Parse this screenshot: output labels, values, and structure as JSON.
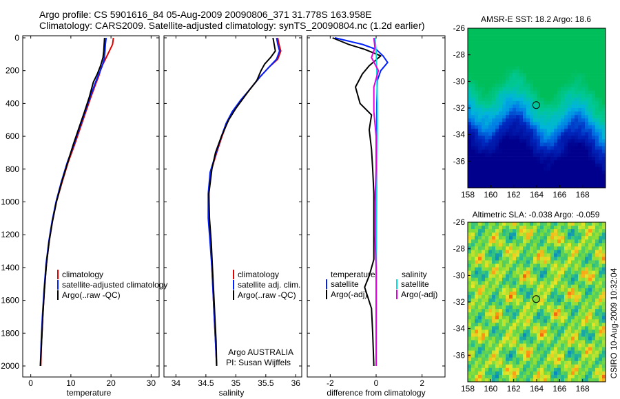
{
  "header": {
    "line1": "Argo profile: CS 5901616_84 05-Aug-2009 20090806_371 31.778S 163.958E",
    "line2": "Climatology: CARS2009. Satellite-adjusted climatology: synTS_20090804.nc (1.2d earlier)"
  },
  "colors": {
    "climatology": "#e00000",
    "satellite": "#0020ff",
    "argo": "#000000",
    "satellite_salinity": "#00e0e0",
    "argo_salinity": "#e000e0"
  },
  "depth_ticks": [
    "0",
    "200",
    "400",
    "600",
    "800",
    "1000",
    "1200",
    "1400",
    "1600",
    "1800",
    "2000"
  ],
  "chart_data": [
    {
      "type": "line",
      "id": "temperature",
      "xlabel": "temperature",
      "ylabel": "",
      "xlim": [
        -2,
        32
      ],
      "ylim": [
        2050,
        0
      ],
      "xticks": [
        "0",
        "10",
        "20",
        "30"
      ],
      "legend": [
        "climatology",
        "satellite-adjusted climatology",
        "Argo(..raw -QC)"
      ],
      "series": [
        {
          "name": "climatology",
          "color": "#e00000",
          "points": [
            [
              20.6,
              0
            ],
            [
              20.4,
              40
            ],
            [
              19.6,
              80
            ],
            [
              18.6,
              130
            ],
            [
              17.6,
              180
            ],
            [
              17.0,
              230
            ],
            [
              16.2,
              280
            ],
            [
              15.0,
              360
            ],
            [
              13.6,
              460
            ],
            [
              12.2,
              560
            ],
            [
              10.8,
              660
            ],
            [
              9.3,
              760
            ],
            [
              7.8,
              880
            ],
            [
              6.4,
              1000
            ],
            [
              5.4,
              1120
            ],
            [
              4.6,
              1240
            ],
            [
              3.9,
              1380
            ],
            [
              3.4,
              1540
            ],
            [
              3.0,
              1700
            ],
            [
              2.7,
              1850
            ],
            [
              2.5,
              2000
            ]
          ]
        },
        {
          "name": "satellite-adjusted climatology",
          "color": "#0020ff",
          "points": [
            [
              18.8,
              0
            ],
            [
              18.6,
              40
            ],
            [
              18.5,
              80
            ],
            [
              18.3,
              130
            ],
            [
              17.7,
              180
            ],
            [
              16.8,
              230
            ],
            [
              16.0,
              280
            ],
            [
              14.8,
              360
            ],
            [
              13.4,
              460
            ],
            [
              12.0,
              560
            ],
            [
              10.6,
              660
            ],
            [
              9.1,
              760
            ],
            [
              7.6,
              880
            ],
            [
              6.3,
              1000
            ],
            [
              5.3,
              1120
            ],
            [
              4.5,
              1240
            ],
            [
              3.8,
              1380
            ],
            [
              3.3,
              1540
            ],
            [
              2.9,
              1700
            ],
            [
              2.6,
              1850
            ],
            [
              2.4,
              2000
            ]
          ]
        },
        {
          "name": "Argo(..raw -QC)",
          "color": "#000000",
          "points": [
            [
              18.4,
              0
            ],
            [
              18.3,
              40
            ],
            [
              18.2,
              80
            ],
            [
              18.0,
              120
            ],
            [
              17.4,
              170
            ],
            [
              16.6,
              220
            ],
            [
              15.6,
              270
            ],
            [
              14.6,
              360
            ],
            [
              13.4,
              450
            ],
            [
              12.0,
              550
            ],
            [
              10.6,
              650
            ],
            [
              9.2,
              760
            ],
            [
              7.7,
              880
            ],
            [
              6.4,
              1000
            ],
            [
              5.4,
              1120
            ],
            [
              4.6,
              1240
            ],
            [
              3.9,
              1380
            ],
            [
              3.4,
              1540
            ],
            [
              3.0,
              1700
            ],
            [
              2.7,
              1850
            ],
            [
              2.4,
              2000
            ]
          ]
        }
      ]
    },
    {
      "type": "line",
      "id": "salinity",
      "xlabel": "salinity",
      "ylabel": "",
      "xlim": [
        33.8,
        36.1
      ],
      "ylim": [
        2050,
        0
      ],
      "xticks": [
        "34",
        "34.5",
        "35",
        "35.5",
        "36"
      ],
      "legend": [
        "climatology",
        "satellite adj. clim.",
        "Argo(..raw -QC)"
      ],
      "annotation": [
        "Argo AUSTRALIA",
        "PI: Susan Wijffels"
      ],
      "series": [
        {
          "name": "climatology",
          "color": "#e00000",
          "points": [
            [
              35.7,
              0
            ],
            [
              35.72,
              40
            ],
            [
              35.75,
              80
            ],
            [
              35.7,
              130
            ],
            [
              35.55,
              180
            ],
            [
              35.4,
              240
            ],
            [
              35.22,
              320
            ],
            [
              35.1,
              380
            ],
            [
              34.95,
              450
            ],
            [
              34.85,
              520
            ],
            [
              34.77,
              600
            ],
            [
              34.68,
              700
            ],
            [
              34.58,
              820
            ],
            [
              34.55,
              950
            ],
            [
              34.55,
              1100
            ],
            [
              34.58,
              1250
            ],
            [
              34.6,
              1400
            ],
            [
              34.62,
              1550
            ],
            [
              34.64,
              1700
            ],
            [
              34.66,
              1850
            ],
            [
              34.68,
              2000
            ]
          ]
        },
        {
          "name": "satellite adj. clim.",
          "color": "#0020ff",
          "points": [
            [
              35.68,
              0
            ],
            [
              35.7,
              40
            ],
            [
              35.73,
              80
            ],
            [
              35.68,
              130
            ],
            [
              35.55,
              180
            ],
            [
              35.4,
              240
            ],
            [
              35.22,
              320
            ],
            [
              35.08,
              380
            ],
            [
              34.94,
              450
            ],
            [
              34.84,
              520
            ],
            [
              34.76,
              600
            ],
            [
              34.67,
              700
            ],
            [
              34.57,
              820
            ],
            [
              34.54,
              950
            ],
            [
              34.54,
              1100
            ],
            [
              34.57,
              1250
            ],
            [
              34.6,
              1400
            ],
            [
              34.62,
              1550
            ],
            [
              34.64,
              1700
            ],
            [
              34.66,
              1850
            ],
            [
              34.68,
              2000
            ]
          ]
        },
        {
          "name": "Argo(..raw -QC)",
          "color": "#000000",
          "points": [
            [
              35.62,
              0
            ],
            [
              35.64,
              40
            ],
            [
              35.66,
              80
            ],
            [
              35.58,
              120
            ],
            [
              35.48,
              160
            ],
            [
              35.42,
              200
            ],
            [
              35.35,
              260
            ],
            [
              35.18,
              340
            ],
            [
              35.0,
              430
            ],
            [
              34.88,
              500
            ],
            [
              34.76,
              600
            ],
            [
              34.66,
              700
            ],
            [
              34.6,
              800
            ],
            [
              34.55,
              950
            ],
            [
              34.56,
              1100
            ],
            [
              34.59,
              1250
            ],
            [
              34.61,
              1400
            ],
            [
              34.63,
              1550
            ],
            [
              34.65,
              1700
            ],
            [
              34.67,
              1850
            ],
            [
              34.68,
              2000
            ]
          ]
        }
      ]
    },
    {
      "type": "line",
      "id": "difference",
      "xlabel": "difference from climatology",
      "ylabel": "",
      "xlim": [
        -3,
        3
      ],
      "ylim": [
        2050,
        0
      ],
      "xticks": [
        "-2",
        "0",
        "2"
      ],
      "legend_left_title": "temperature",
      "legend_right_title": "salinity",
      "legend_left": [
        "satellite",
        "Argo(-adj)"
      ],
      "legend_right": [
        "satellite",
        "Argo(-adj)"
      ],
      "series": [
        {
          "name": "temperature satellite",
          "color": "#0020ff",
          "points": [
            [
              -1.8,
              0
            ],
            [
              -0.6,
              40
            ],
            [
              0.0,
              70
            ],
            [
              0.3,
              110
            ],
            [
              0.5,
              150
            ],
            [
              0.2,
              200
            ],
            [
              0.05,
              260
            ],
            [
              0.03,
              400
            ],
            [
              0.02,
              600
            ],
            [
              0.01,
              900
            ],
            [
              0.0,
              1200
            ],
            [
              0.0,
              1500
            ],
            [
              0.0,
              1800
            ],
            [
              0.0,
              2000
            ]
          ]
        },
        {
          "name": "temperature Argo(-adj)",
          "color": "#000000",
          "points": [
            [
              -1.9,
              0
            ],
            [
              -1.2,
              40
            ],
            [
              -0.5,
              70
            ],
            [
              0.2,
              110
            ],
            [
              -0.3,
              170
            ],
            [
              -0.6,
              220
            ],
            [
              -0.9,
              300
            ],
            [
              -0.7,
              400
            ],
            [
              -0.2,
              470
            ],
            [
              -0.3,
              560
            ],
            [
              -0.2,
              680
            ],
            [
              -0.15,
              800
            ],
            [
              -0.1,
              950
            ],
            [
              -0.1,
              1200
            ],
            [
              -0.1,
              1350
            ],
            [
              -0.3,
              1450
            ],
            [
              -0.5,
              1520
            ],
            [
              -0.2,
              1650
            ],
            [
              -0.15,
              1800
            ],
            [
              -0.1,
              2000
            ]
          ]
        },
        {
          "name": "salinity satellite",
          "color": "#00e0e0",
          "points": [
            [
              -0.05,
              0
            ],
            [
              0.0,
              80
            ],
            [
              0.03,
              200
            ],
            [
              0.05,
              400
            ],
            [
              0.05,
              600
            ],
            [
              0.03,
              800
            ],
            [
              0.02,
              1000
            ],
            [
              0.01,
              1300
            ],
            [
              0.01,
              1600
            ],
            [
              0.0,
              1900
            ],
            [
              0.0,
              2000
            ]
          ]
        },
        {
          "name": "salinity Argo(-adj)",
          "color": "#e000e0",
          "points": [
            [
              -0.1,
              0
            ],
            [
              -0.05,
              60
            ],
            [
              -0.2,
              120
            ],
            [
              0.1,
              200
            ],
            [
              -0.1,
              300
            ],
            [
              -0.1,
              450
            ],
            [
              0.0,
              600
            ],
            [
              0.0,
              800
            ],
            [
              -0.05,
              1000
            ],
            [
              -0.05,
              1200
            ],
            [
              0.0,
              1400
            ],
            [
              0.0,
              1600
            ],
            [
              0.0,
              1800
            ],
            [
              0.0,
              2000
            ]
          ]
        }
      ]
    },
    {
      "type": "heatmap",
      "id": "sst",
      "title": "AMSR-E SST: 18.2 Argo: 18.6",
      "xlim": [
        158,
        170
      ],
      "ylim": [
        -38,
        -26
      ],
      "xticks": [
        "158",
        "160",
        "162",
        "164",
        "166",
        "168"
      ],
      "yticks": [
        "-26",
        "-28",
        "-30",
        "-32",
        "-34",
        "-36"
      ],
      "float_position": [
        163.96,
        -31.78
      ]
    },
    {
      "type": "heatmap",
      "id": "sla",
      "title": "Altimetric SLA: -0.038 Argo: -0.059",
      "xlim": [
        158,
        170
      ],
      "ylim": [
        -38,
        -26
      ],
      "xticks": [
        "158",
        "160",
        "162",
        "164",
        "166",
        "168"
      ],
      "yticks": [
        "-26",
        "-28",
        "-30",
        "-32",
        "-34",
        "-36"
      ],
      "float_position": [
        163.96,
        -31.78
      ]
    }
  ],
  "footer": {
    "side_label": "CSIRO 10-Aug-2009 10:32:04"
  }
}
